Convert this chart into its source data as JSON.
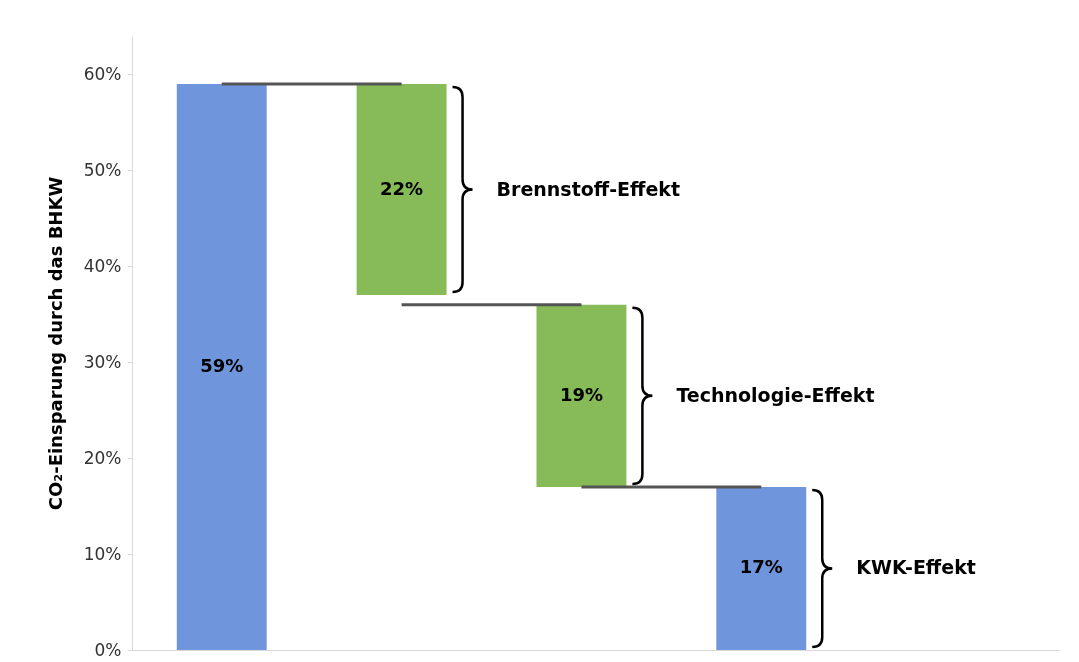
{
  "chart_data": {
    "type": "bar",
    "ylabel": "CO₂-Einsparung durch das BHKW",
    "categories": [
      null,
      null,
      null,
      null
    ],
    "values": [
      59,
      22,
      19,
      17
    ],
    "base": [
      0,
      37,
      17,
      0
    ],
    "colors": [
      "#6f96dc",
      "#86bb58",
      "#86bb58",
      "#6f96dc"
    ],
    "value_labels": [
      "59%",
      "22%",
      "19%",
      "17%"
    ],
    "ylim": [
      0,
      64
    ],
    "yticks": [
      {
        "value": 0,
        "label": "0%"
      },
      {
        "value": 10,
        "label": "10%"
      },
      {
        "value": 20,
        "label": "20%"
      },
      {
        "value": 30,
        "label": "30%"
      },
      {
        "value": 40,
        "label": "40%"
      },
      {
        "value": 50,
        "label": "50%"
      },
      {
        "value": 60,
        "label": "60%"
      }
    ],
    "tick_labels": "y",
    "annotations": [
      "Brennstoff-Effekt",
      "Technologie-Effekt",
      "KWK-Effekt"
    ]
  }
}
